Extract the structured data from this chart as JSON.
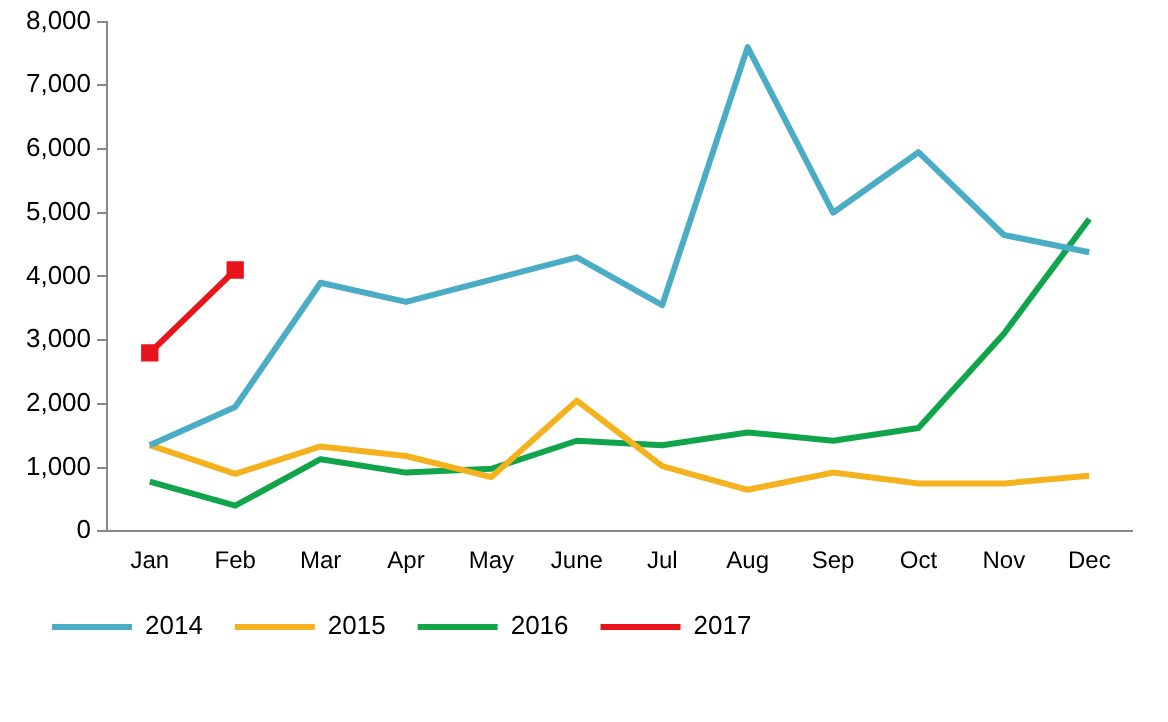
{
  "chart_data": {
    "type": "line",
    "categories": [
      "Jan",
      "Feb",
      "Mar",
      "Apr",
      "May",
      "June",
      "Jul",
      "Aug",
      "Sep",
      "Oct",
      "Nov",
      "Dec"
    ],
    "series": [
      {
        "name": "2014",
        "color": "#4bacc6",
        "marker": "none",
        "values": [
          1350,
          1950,
          3900,
          3600,
          3950,
          4300,
          3550,
          7600,
          5000,
          5950,
          4650,
          4380
        ]
      },
      {
        "name": "2015",
        "color": "#f5b21f",
        "marker": "none",
        "values": [
          1350,
          900,
          1330,
          1180,
          850,
          2050,
          1020,
          650,
          920,
          750,
          750,
          870
        ]
      },
      {
        "name": "2016",
        "color": "#10a54a",
        "marker": "none",
        "values": [
          780,
          400,
          1130,
          920,
          980,
          1420,
          1350,
          1550,
          1420,
          1620,
          3100,
          4900
        ]
      },
      {
        "name": "2017",
        "color": "#e8141b",
        "marker": "square",
        "values": [
          2800,
          4100,
          null,
          null,
          null,
          null,
          null,
          null,
          null,
          null,
          null,
          null
        ]
      }
    ],
    "ylim": [
      0,
      8000
    ],
    "yticks": [
      {
        "value": 0,
        "label": "0"
      },
      {
        "value": 1000,
        "label": "1,000"
      },
      {
        "value": 2000,
        "label": "2,000"
      },
      {
        "value": 3000,
        "label": "3,000"
      },
      {
        "value": 4000,
        "label": "4,000"
      },
      {
        "value": 5000,
        "label": "5,000"
      },
      {
        "value": 6000,
        "label": "6,000"
      },
      {
        "value": 7000,
        "label": "7,000"
      },
      {
        "value": 8000,
        "label": "8,000"
      }
    ],
    "grid": false,
    "legend": "bottom",
    "line_style": "solid"
  }
}
